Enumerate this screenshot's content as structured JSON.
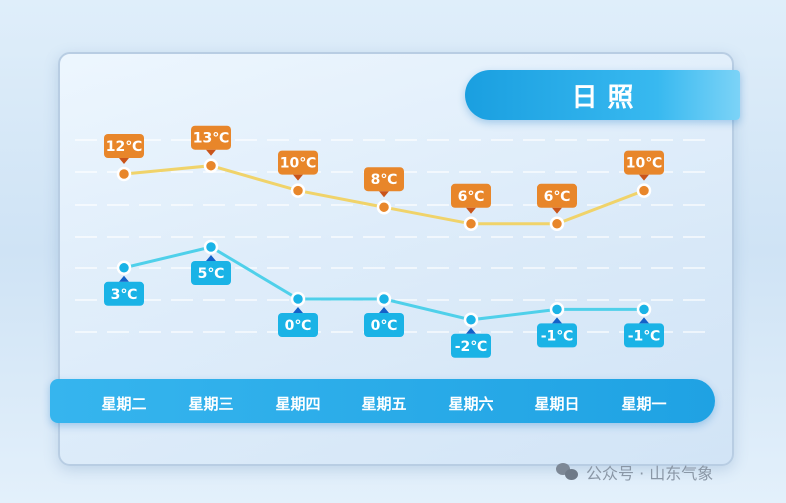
{
  "title": "日照",
  "watermark": "公众号 · 山东气象",
  "colors": {
    "high": "#e8862a",
    "high_line": "#f0d36a",
    "low": "#1ab3e6",
    "low_line": "#4fd0ea",
    "band": "#22a6e6"
  },
  "chart_data": {
    "type": "line",
    "categories": [
      "星期二",
      "星期三",
      "星期四",
      "星期五",
      "星期六",
      "星期日",
      "星期一"
    ],
    "series": [
      {
        "values": [
          12,
          13,
          10,
          8,
          6,
          6,
          10
        ],
        "labels": [
          "12℃",
          "13℃",
          "10℃",
          "8℃",
          "6℃",
          "6℃",
          "10℃"
        ]
      },
      {
        "values": [
          3,
          5,
          0,
          0,
          -2,
          -1,
          -1
        ],
        "labels": [
          "3℃",
          "5℃",
          "0℃",
          "0℃",
          "-2℃",
          "-1℃",
          "-1℃"
        ]
      }
    ],
    "unit": "℃",
    "grid": true
  }
}
